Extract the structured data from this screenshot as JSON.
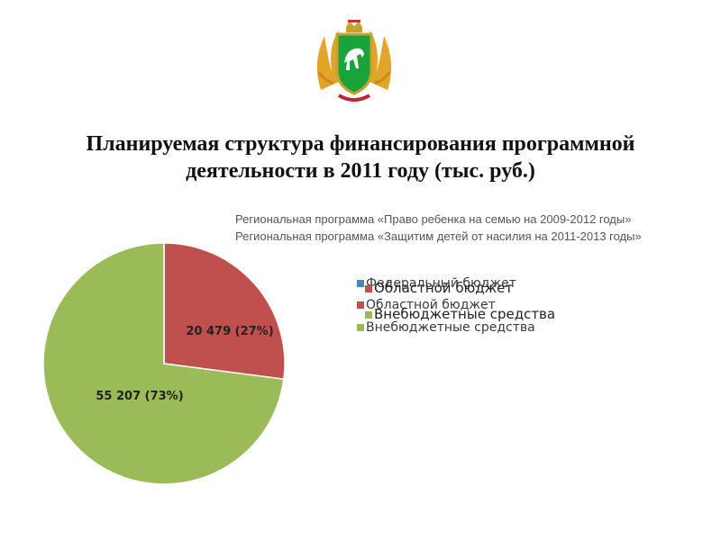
{
  "slide": {
    "title_line1": "Планируемая структура финансирования программной",
    "title_line2": "деятельности в 2011 году (тыс. руб.)",
    "subtitle_line1": "Региональная программа «Право ребенка на семью на 2009-2012 годы»",
    "subtitle_line2": "Региональная программа «Защитим детей от насилия на 2011-2013 годы»",
    "emblem_icon": "regional-coat-of-arms-icon"
  },
  "chart_data": {
    "type": "pie",
    "slices": [
      {
        "name": "Областной бюджет",
        "value": 20479,
        "percent": 27,
        "label": "20 479 (27%)",
        "color": "#c0504d"
      },
      {
        "name": "Внебюджетные средства",
        "value": 55207,
        "percent": 73,
        "label": "55 207 (73%)",
        "color": "#9bbb59"
      }
    ],
    "legend_a": [
      {
        "label": "Федеральный бюджет",
        "color": "#4f81bd"
      },
      {
        "label": "Областной бюджет",
        "color": "#c0504d"
      },
      {
        "label": "Внебюджетные средства",
        "color": "#9bbb59"
      }
    ],
    "legend_b": [
      {
        "label": "Областной бюджет",
        "color": "#c0504d"
      },
      {
        "label": "Внебюджетные средства",
        "color": "#9bbb59"
      }
    ],
    "legend_position": "right"
  }
}
